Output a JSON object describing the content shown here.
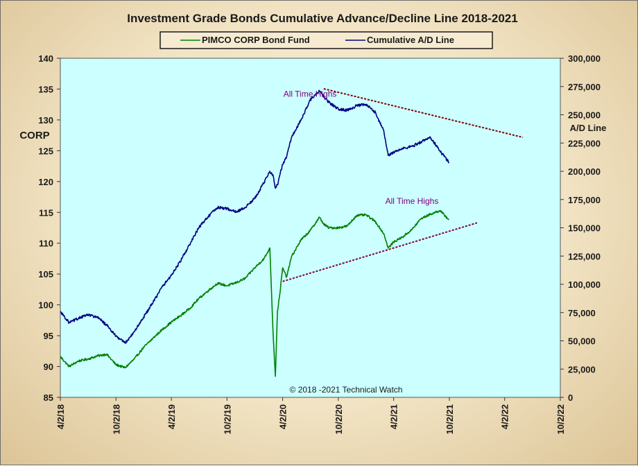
{
  "chart_data": {
    "type": "line",
    "title": "Investment Grade Bonds Cumulative Advance/Decline Line 2018-2021",
    "left_axis": {
      "label": "CORP",
      "range": [
        85,
        140
      ],
      "ticks": [
        "85",
        "90",
        "95",
        "100",
        "105",
        "110",
        "115",
        "120",
        "125",
        "130",
        "135",
        "140"
      ]
    },
    "right_axis": {
      "label": "A/D Line",
      "range": [
        0,
        300000
      ],
      "ticks": [
        "0",
        "25,000",
        "50,000",
        "75,000",
        "100,000",
        "125,000",
        "150,000",
        "175,000",
        "200,000",
        "225,000",
        "250,000",
        "275,000",
        "300,000"
      ]
    },
    "x_axis": {
      "ticks": [
        "4/2/18",
        "10/2/18",
        "4/2/19",
        "10/2/19",
        "4/2/20",
        "10/2/20",
        "4/2/21",
        "10/2/21",
        "4/2/22",
        "10/2/22"
      ]
    },
    "grid": false,
    "plot_background": "#ccffff",
    "legend_placement": "top",
    "series": [
      {
        "name": "PIMCO CORP Bond Fund",
        "axis": "left",
        "color": "#008000",
        "x": [
          "4/2/18",
          "5/1/18",
          "6/1/18",
          "7/1/18",
          "8/1/18",
          "9/1/18",
          "10/2/18",
          "11/1/18",
          "12/1/18",
          "1/1/19",
          "2/1/19",
          "3/1/19",
          "4/2/19",
          "5/1/19",
          "6/1/19",
          "7/1/19",
          "8/1/19",
          "9/1/19",
          "10/2/19",
          "11/1/19",
          "12/1/19",
          "1/1/20",
          "2/1/20",
          "2/20/20",
          "3/1/20",
          "3/9/20",
          "3/16/20",
          "3/23/20",
          "4/2/20",
          "4/15/20",
          "5/1/20",
          "6/1/20",
          "7/1/20",
          "8/1/20",
          "8/15/20",
          "9/1/20",
          "10/2/20",
          "11/1/20",
          "12/1/20",
          "1/1/21",
          "2/1/21",
          "3/1/21",
          "3/15/21",
          "4/2/21",
          "5/1/21",
          "6/1/21",
          "7/1/21",
          "8/1/21",
          "9/1/21",
          "10/1/21"
        ],
        "values": [
          91.6,
          90.0,
          90.9,
          91.2,
          91.7,
          92.0,
          90.3,
          89.8,
          91.2,
          93.1,
          94.6,
          95.9,
          97.2,
          98.2,
          99.4,
          101.0,
          102.3,
          103.5,
          103.1,
          103.6,
          104.3,
          106.0,
          107.5,
          109.2,
          96.0,
          88.4,
          99.0,
          101.5,
          106.0,
          104.5,
          107.8,
          110.5,
          112.0,
          114.2,
          113.1,
          112.5,
          112.5,
          112.8,
          114.5,
          114.6,
          113.5,
          111.5,
          109.2,
          110.2,
          111.0,
          112.2,
          114.0,
          114.7,
          115.3,
          113.8
        ]
      },
      {
        "name": "Cumulative A/D Line",
        "axis": "right",
        "color": "#000080",
        "x": [
          "4/2/18",
          "5/1/18",
          "6/1/18",
          "7/1/18",
          "8/1/18",
          "9/1/18",
          "10/2/18",
          "11/1/18",
          "12/1/18",
          "1/1/19",
          "2/1/19",
          "3/1/19",
          "4/2/19",
          "5/1/19",
          "6/1/19",
          "7/1/19",
          "8/1/19",
          "9/1/19",
          "10/2/19",
          "11/1/19",
          "12/1/19",
          "1/1/20",
          "2/1/20",
          "2/20/20",
          "3/1/20",
          "3/9/20",
          "3/16/20",
          "3/23/20",
          "4/2/20",
          "4/15/20",
          "5/1/20",
          "6/1/20",
          "7/1/20",
          "8/1/20",
          "8/15/20",
          "9/1/20",
          "10/2/20",
          "11/1/20",
          "12/1/20",
          "1/1/21",
          "2/1/21",
          "3/1/21",
          "3/15/21",
          "4/2/21",
          "5/1/21",
          "6/1/21",
          "7/1/21",
          "8/1/21",
          "9/1/21",
          "10/1/21"
        ],
        "values": [
          76000,
          66000,
          70000,
          73000,
          71000,
          64000,
          54000,
          48000,
          58000,
          71000,
          84000,
          97000,
          108000,
          120000,
          135000,
          150000,
          160000,
          168000,
          167000,
          164000,
          168000,
          176000,
          190000,
          200000,
          197000,
          185000,
          188000,
          196000,
          206000,
          213000,
          230000,
          245000,
          263000,
          271000,
          266000,
          261000,
          255000,
          254000,
          258000,
          259000,
          252000,
          235000,
          214000,
          217000,
          220000,
          222000,
          226000,
          230000,
          218000,
          208000
        ]
      }
    ],
    "trendlines": [
      {
        "axis": "right",
        "color": "#800000",
        "style": "dashed",
        "from": {
          "x": "8/15/20",
          "y": 273000
        },
        "to": {
          "x": "6/1/22",
          "y": 230000
        }
      },
      {
        "axis": "left",
        "color": "#800040",
        "style": "dashed",
        "from": {
          "x": "4/2/20",
          "y": 103.8
        },
        "to": {
          "x": "1/1/22",
          "y": 113.3
        }
      }
    ],
    "annotations": [
      {
        "text": "All Time Highs",
        "x": "7/1/20",
        "y_right": 266000
      },
      {
        "text": "All Time Highs",
        "x": "6/1/21",
        "y_left": 116.4
      }
    ],
    "footer": "© 2018 -2021 Technical Watch"
  },
  "colors": {
    "plot_background": "#ccffff",
    "green_series": "#008000",
    "blue_series": "#000080",
    "trend_upper": "#800000",
    "trend_lower": "#800040",
    "annotation_text": "#800080"
  }
}
